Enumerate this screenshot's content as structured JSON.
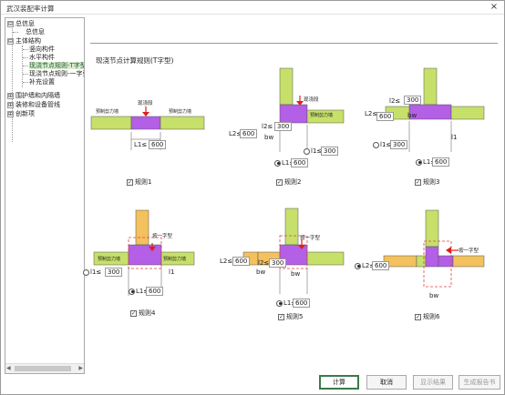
{
  "window": {
    "title": "武汉装配率计算",
    "close": "×"
  },
  "tree": [
    {
      "label": "总信息",
      "toggle": "⊟"
    },
    {
      "label": "总信息"
    },
    {
      "label": "主体结构",
      "toggle": "⊟"
    },
    {
      "label": "竖向构件"
    },
    {
      "label": "水平构件"
    },
    {
      "label": "现浇节点规则-T字型"
    },
    {
      "label": "现浇节点规则-一字型"
    },
    {
      "label": "补充设置"
    },
    {
      "label": "围护墙和内隔墙",
      "toggle": "⊞"
    },
    {
      "label": "装修和设备管线",
      "toggle": "⊞"
    },
    {
      "label": "创新项",
      "toggle": "⊞"
    }
  ],
  "section_title": "现浇节点计算规则(T字型)",
  "labels": {
    "precast_wall": "预制剪力墙",
    "cast_section": "现浇段",
    "bw": "bw",
    "l1": "l1",
    "one_shape": "按一字型"
  },
  "rules": [
    {
      "label": "规则1",
      "checked": true,
      "l1": "L1≤",
      "l1_val": "600"
    },
    {
      "label": "规则2",
      "checked": true,
      "l2": "L2≤",
      "l2_val": "600",
      "l2b": "l2≤",
      "l2b_val": "300",
      "l1": "L1≤",
      "l1_val": "600",
      "l1b": "l1≤",
      "l1b_val": "300"
    },
    {
      "label": "规则3",
      "checked": true,
      "l2": "L2≤",
      "l2_val": "600",
      "l2b": "l2≤",
      "l2b_val": "300",
      "l1": "L1≤",
      "l1_val": "600",
      "l1b": "l1≤",
      "l1b_val": "300"
    },
    {
      "label": "规则4",
      "checked": true,
      "l1": "L1≤",
      "l1_val": "600",
      "l1b": "l1≤",
      "l1b_val": "300"
    },
    {
      "label": "规则5",
      "checked": true,
      "l2": "L2≤",
      "l2_val": "600",
      "l2b": "l2≤",
      "l2b_val": "300",
      "l1": "L1≤",
      "l1_val": "600"
    },
    {
      "label": "规则6",
      "checked": true,
      "l2": "L2≤",
      "l2_val": "600"
    }
  ],
  "buttons": {
    "calc": "计算",
    "cancel": "取消",
    "show_result": "显示结果",
    "report": "生成报告书"
  },
  "colors": {
    "precast": "#c6e06a",
    "cast": "#b35fe6",
    "yellow": "#f3c15d",
    "arrow": "#e11d1d",
    "dim_red": "#e04040",
    "accent": "#3a7a4b"
  }
}
